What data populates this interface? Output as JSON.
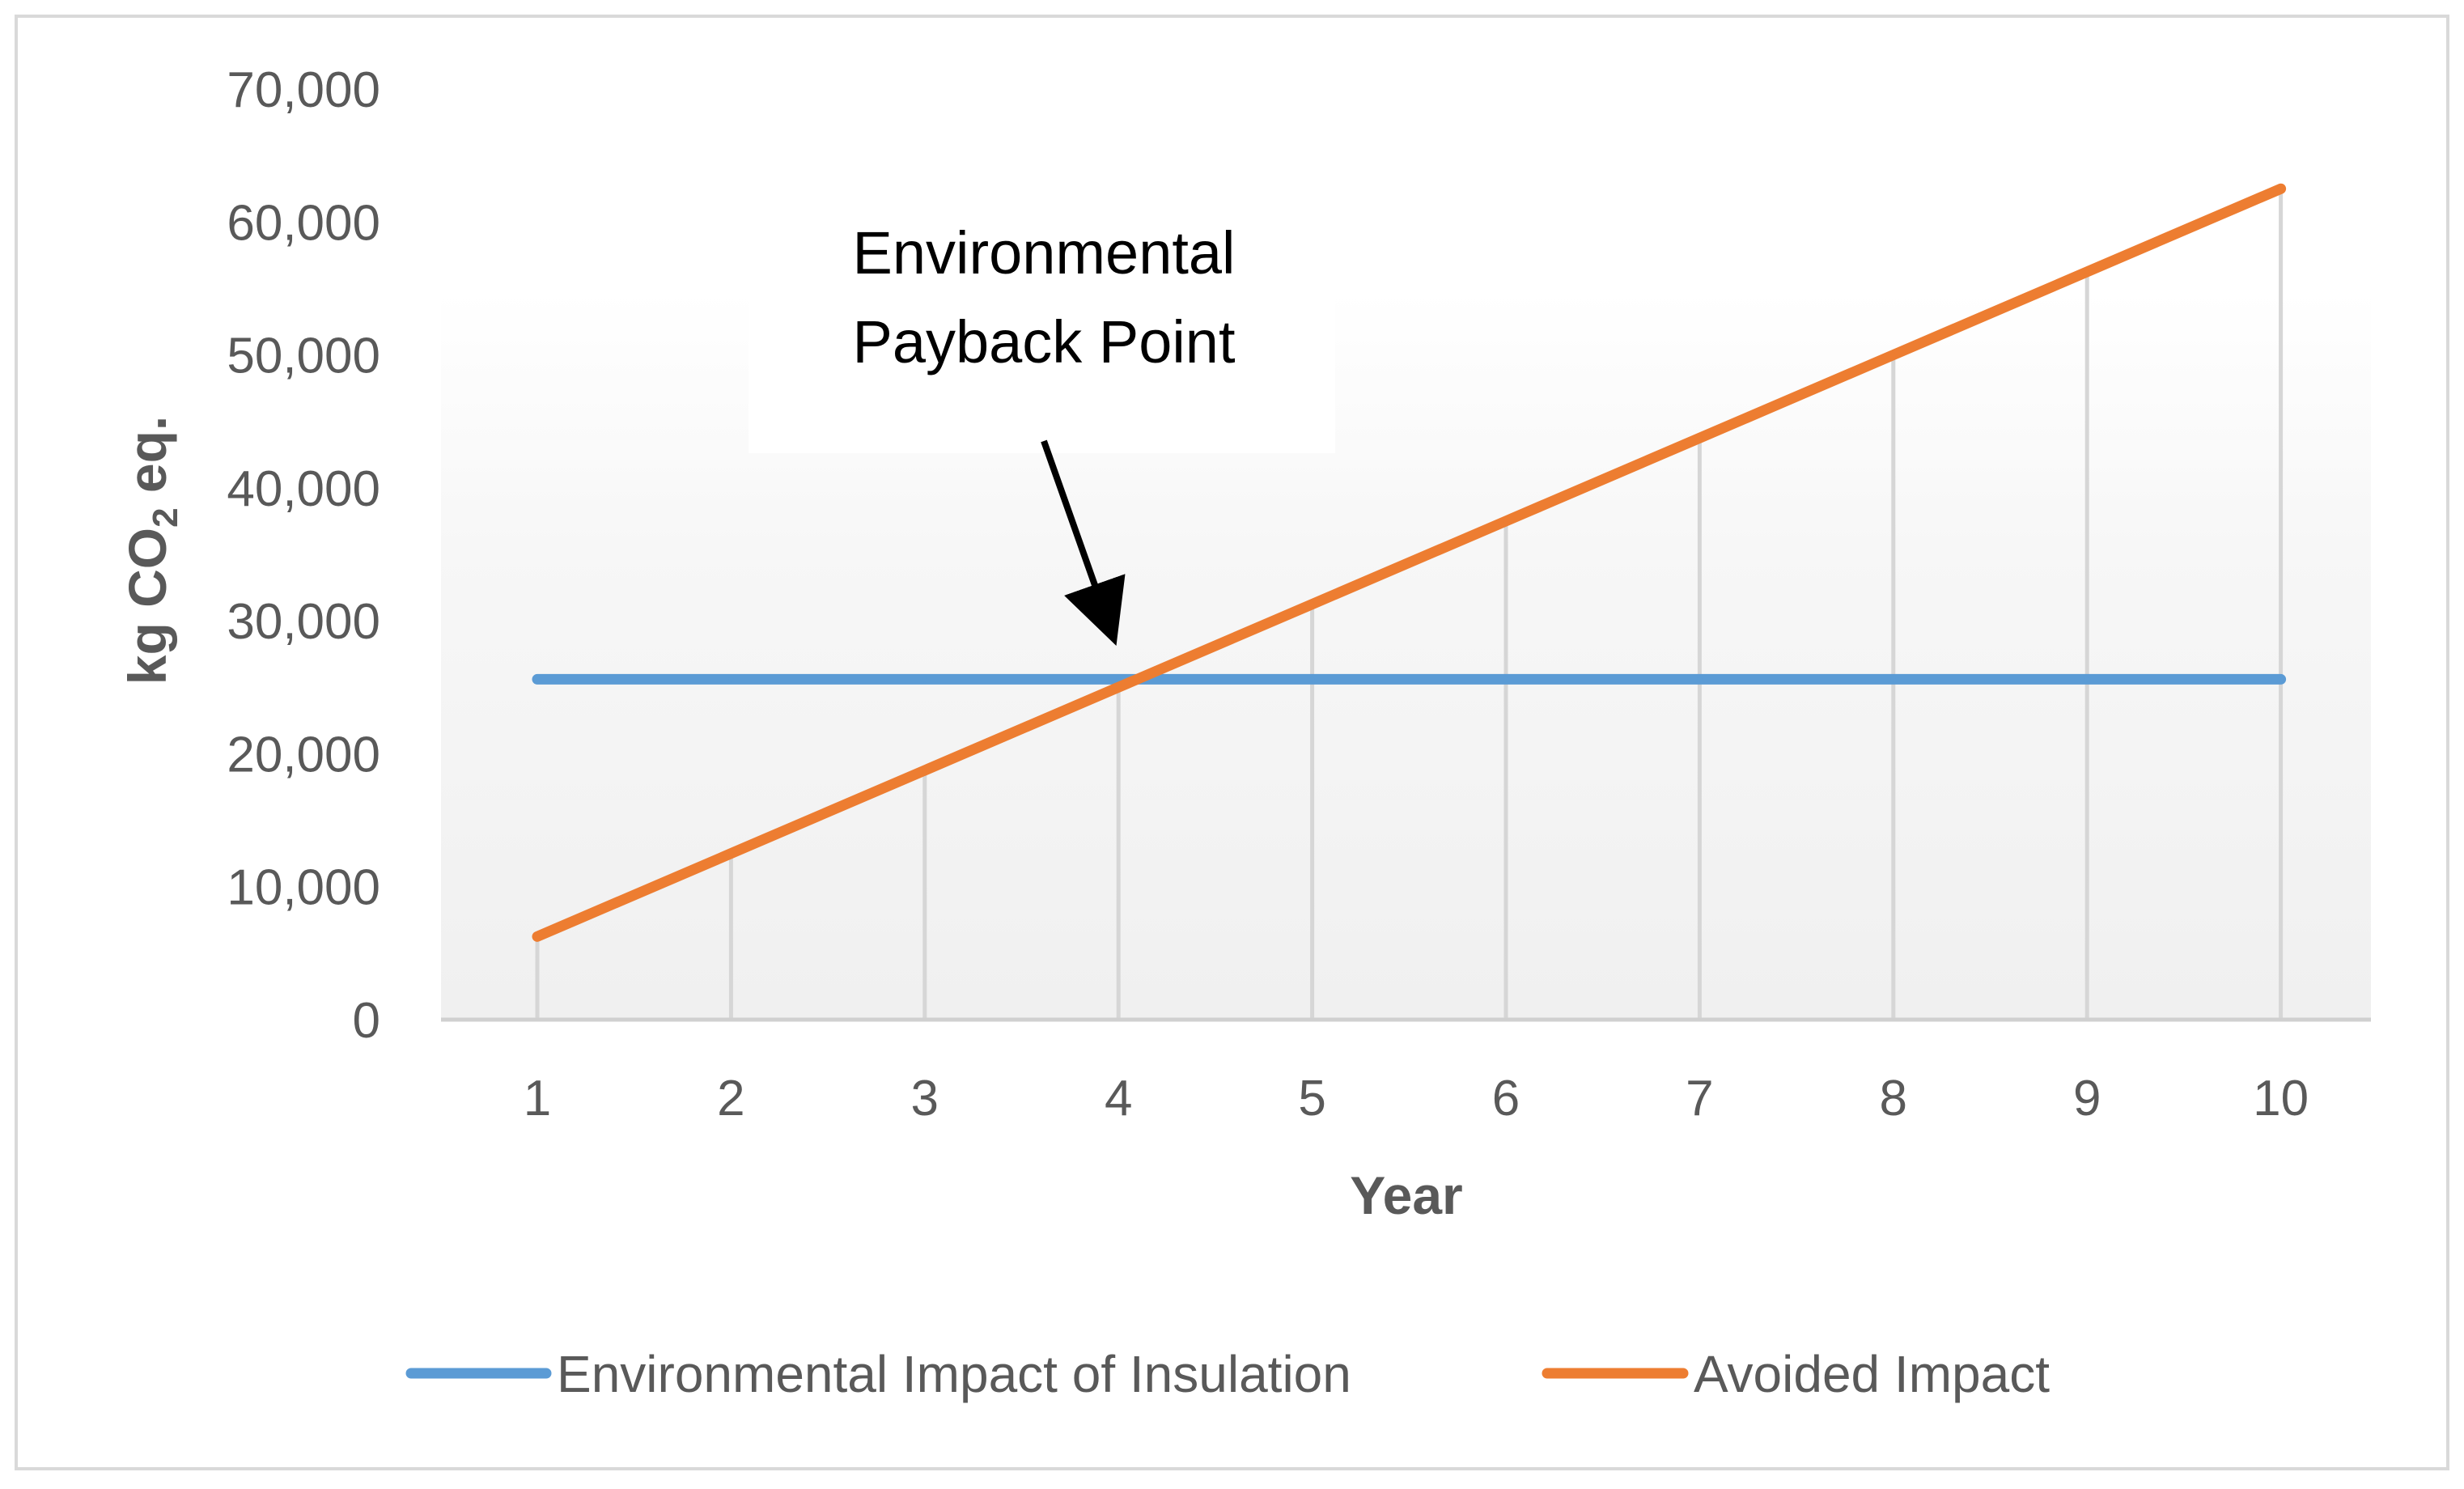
{
  "chart_data": {
    "type": "line",
    "title": "",
    "xlabel": "Year",
    "ylabel": "kg CO2 eq.",
    "ylabel_parts": {
      "main": "kg CO",
      "subscript": "2",
      "tail": " eq."
    },
    "x": [
      1,
      2,
      3,
      4,
      5,
      6,
      7,
      8,
      9,
      10
    ],
    "x_tick_labels": [
      "1",
      "2",
      "3",
      "4",
      "5",
      "6",
      "7",
      "8",
      "9",
      "10"
    ],
    "ylim": [
      0,
      70000
    ],
    "y_tick_values": [
      0,
      10000,
      20000,
      30000,
      40000,
      50000,
      60000,
      70000
    ],
    "y_tick_labels": [
      "0",
      "10,000",
      "20,000",
      "30,000",
      "40,000",
      "50,000",
      "60,000",
      "70,000"
    ],
    "grid": "vertical",
    "legend_position": "bottom",
    "series": [
      {
        "name": "Environmental Impact of Insulation",
        "color": "#5B9BD5",
        "values": [
          25600,
          25600,
          25600,
          25600,
          25600,
          25600,
          25600,
          25600,
          25600,
          25600
        ]
      },
      {
        "name": "Avoided Impact",
        "color": "#ED7D31",
        "values": [
          6250,
          12500,
          18750,
          25000,
          31250,
          37500,
          43750,
          50000,
          56250,
          62500
        ]
      }
    ],
    "annotation": {
      "line1": "Environmental",
      "line2": "Payback Point",
      "target_x": 4.05,
      "target_y": 25600
    }
  }
}
